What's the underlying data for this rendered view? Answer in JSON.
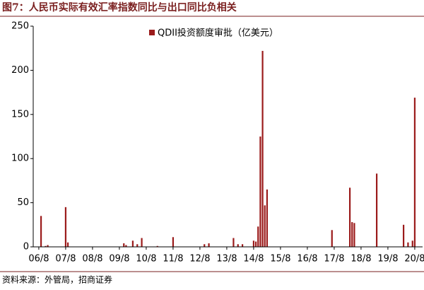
{
  "chart_data": {
    "type": "bar",
    "title": "图7：人民币实际有效汇率指数同比与出口同比负相关",
    "source": "资料来源：外管局，招商证券",
    "categories": [
      null,
      null,
      "06/8",
      null,
      null,
      null,
      null,
      null,
      null,
      null,
      null,
      null,
      null,
      null,
      "07/8",
      null,
      null,
      null,
      null,
      null,
      null,
      null,
      null,
      null,
      null,
      null,
      "08/8",
      null,
      null,
      null,
      null,
      null,
      null,
      null,
      null,
      null,
      null,
      null,
      "09/8",
      null,
      null,
      null,
      null,
      null,
      null,
      null,
      null,
      null,
      null,
      null,
      "10/8",
      null,
      null,
      null,
      null,
      null,
      null,
      null,
      null,
      null,
      null,
      null,
      "11/8",
      null,
      null,
      null,
      null,
      null,
      null,
      null,
      null,
      null,
      null,
      null,
      "12/8",
      null,
      null,
      null,
      null,
      null,
      null,
      null,
      null,
      null,
      null,
      null,
      "13/8",
      null,
      null,
      null,
      null,
      null,
      null,
      null,
      null,
      null,
      null,
      null,
      "14/8",
      null,
      null,
      null,
      null,
      null,
      null,
      null,
      null,
      null,
      null,
      null,
      "15/8",
      null,
      null,
      null,
      null,
      null,
      null,
      null,
      null,
      null,
      null,
      null,
      "16/8",
      null,
      null,
      null,
      null,
      null,
      null,
      null,
      null,
      null,
      null,
      null,
      "17/8",
      null,
      null,
      null,
      null,
      null,
      null,
      null,
      null,
      null,
      null,
      null,
      "18/8",
      null,
      null,
      null,
      null,
      null,
      null,
      null,
      null,
      null,
      null,
      null,
      "19/8",
      null,
      null,
      null,
      null,
      null,
      null,
      null,
      null,
      null,
      null,
      null,
      "20/8",
      null,
      null,
      null
    ],
    "series": [
      {
        "name": "QDII投资额度审批（亿美元）",
        "color": "#9b1b1b",
        "values": [
          0,
          0,
          0,
          35,
          0,
          1,
          2,
          0,
          0,
          0,
          0,
          0,
          0,
          0,
          45,
          5,
          0,
          0,
          0,
          0,
          0,
          0,
          0,
          0,
          0,
          0,
          0,
          0,
          0,
          0,
          0,
          0,
          0,
          0,
          0,
          0,
          0,
          0,
          0,
          0,
          4,
          2,
          0,
          0,
          7,
          0,
          3,
          0,
          10,
          0,
          0,
          0,
          0,
          0,
          0,
          1,
          0,
          0,
          0,
          0,
          0,
          0,
          11,
          0,
          0,
          0,
          0,
          0,
          0,
          0,
          0,
          0,
          0,
          0,
          0,
          0,
          3,
          0,
          4,
          0,
          0,
          0,
          0,
          0,
          0,
          0,
          0,
          0,
          0,
          10,
          0,
          3,
          0,
          3,
          0,
          0,
          0,
          0,
          7,
          6,
          23,
          125,
          222,
          47,
          65,
          0,
          0,
          0,
          0,
          0,
          0,
          0,
          0,
          0,
          0,
          0,
          0,
          0,
          0,
          0,
          0,
          0,
          0,
          0,
          0,
          0,
          0,
          0,
          0,
          0,
          0,
          0,
          0,
          19,
          0,
          0,
          0,
          0,
          0,
          0,
          0,
          67,
          28,
          27,
          0,
          0,
          0,
          0,
          0,
          0,
          0,
          0,
          0,
          83,
          0,
          0,
          0,
          0,
          0,
          0,
          0,
          0,
          0,
          0,
          0,
          25,
          0,
          5,
          0,
          7,
          169,
          0,
          0,
          0
        ]
      }
    ],
    "ylim": [
      0,
      250
    ],
    "yticks": [
      0,
      50,
      100,
      150,
      200,
      250
    ],
    "grid": false
  }
}
